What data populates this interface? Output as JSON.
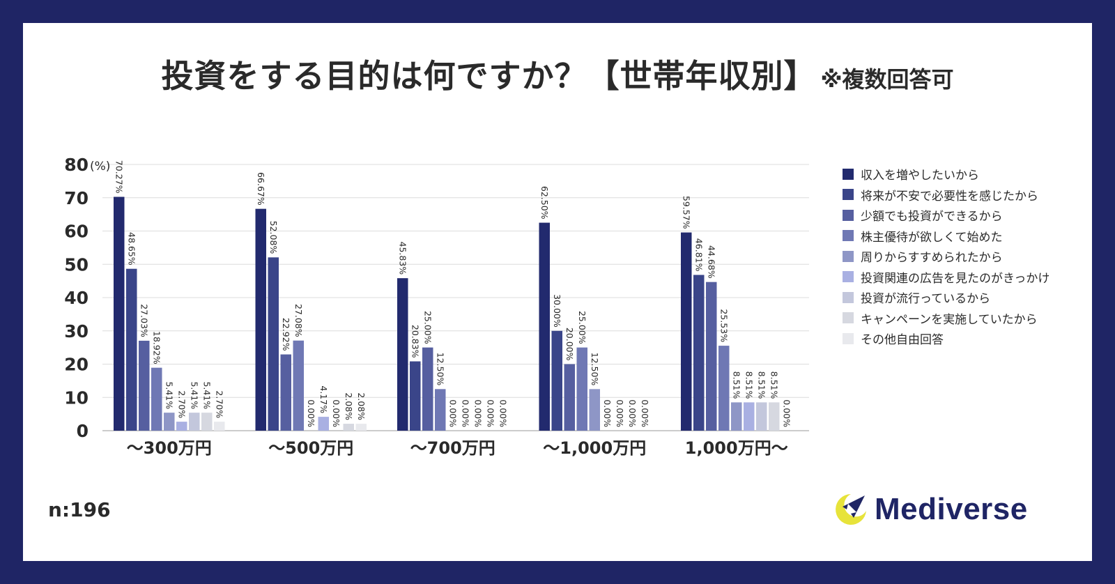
{
  "title": "投資をする目的は何ですか？【世帯年収別】",
  "title_note": "※複数回答可",
  "sample_size": "n:196",
  "brand": {
    "name": "Mediverse",
    "icon": "rocket-moon-icon"
  },
  "chart_data": {
    "type": "bar",
    "title": "投資をする目的は何ですか？【世帯年収別】",
    "ylabel": "(%)",
    "ylim": [
      0,
      80
    ],
    "yticks": [
      0,
      10,
      20,
      30,
      40,
      50,
      60,
      70,
      80
    ],
    "grid": true,
    "legend_placement": "right",
    "categories": [
      "〜300万円",
      "〜500万円",
      "〜700万円",
      "〜1,000万円",
      "1,000万円〜"
    ],
    "series": [
      {
        "name": "収入を増やしたいから",
        "color": "#222a6e",
        "values": [
          70.27,
          66.67,
          45.83,
          62.5,
          59.57
        ],
        "labels": [
          "70.27%",
          "66.67%",
          "45.83%",
          "62.50%",
          "59.57%"
        ]
      },
      {
        "name": "将来が不安で必要性を感じたから",
        "color": "#3a4589",
        "values": [
          48.65,
          52.08,
          20.83,
          30.0,
          46.81
        ],
        "labels": [
          "48.65%",
          "52.08%",
          "20.83%",
          "30.00%",
          "46.81%"
        ]
      },
      {
        "name": "少額でも投資ができるから",
        "color": "#565fa0",
        "values": [
          27.03,
          22.92,
          25.0,
          20.0,
          44.68
        ],
        "labels": [
          "27.03%",
          "22.92%",
          "25.00%",
          "20.00%",
          "44.68%"
        ]
      },
      {
        "name": "株主優待が欲しくて始めた",
        "color": "#6f78b4",
        "values": [
          18.92,
          27.08,
          12.5,
          25.0,
          25.53
        ],
        "labels": [
          "18.92%",
          "27.08%",
          "12.50%",
          "25.00%",
          "25.53%"
        ]
      },
      {
        "name": "周りからすすめられたから",
        "color": "#8e96c6",
        "values": [
          5.41,
          0.0,
          0.0,
          12.5,
          8.51
        ],
        "labels": [
          "5.41%",
          "0.00%",
          "0.00%",
          "12.50%",
          "8.51%"
        ]
      },
      {
        "name": "投資関連の広告を見たのがきっかけ",
        "color": "#a9b0e2",
        "values": [
          2.7,
          4.17,
          0.0,
          0.0,
          8.51
        ],
        "labels": [
          "2.70%",
          "4.17%",
          "0.00%",
          "0.00%",
          "8.51%"
        ]
      },
      {
        "name": "投資が流行っているから",
        "color": "#c3c7dc",
        "values": [
          5.41,
          0.0,
          0.0,
          0.0,
          8.51
        ],
        "labels": [
          "5.41%",
          "0.00%",
          "0.00%",
          "0.00%",
          "8.51%"
        ]
      },
      {
        "name": "キャンペーンを実施していたから",
        "color": "#d6d8e0",
        "values": [
          5.41,
          2.08,
          0.0,
          0.0,
          8.51
        ],
        "labels": [
          "5.41%",
          "2.08%",
          "0.00%",
          "0.00%",
          "8.51%"
        ]
      },
      {
        "name": "その他自由回答",
        "color": "#e8e9ed",
        "values": [
          2.7,
          2.08,
          0.0,
          0.0,
          0.0
        ],
        "labels": [
          "2.70%",
          "2.08%",
          "0.00%",
          "0.00%",
          "0.00%"
        ]
      }
    ]
  }
}
